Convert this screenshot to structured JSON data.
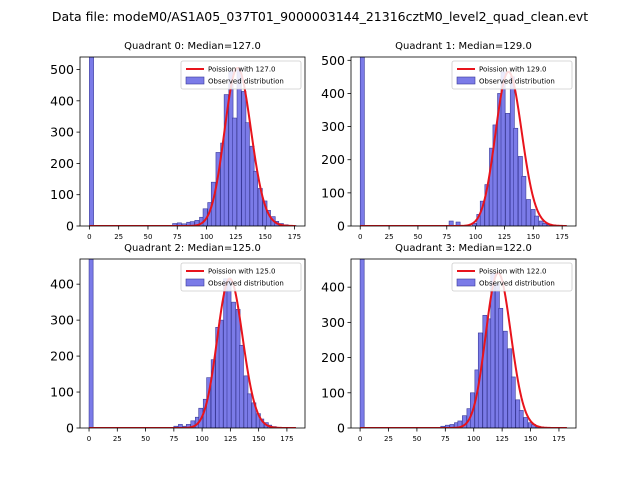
{
  "figure": {
    "suptitle": "Data file: modeM0/AS1A05_037T01_9000003144_21316cztM0_level2_quad_clean.evt"
  },
  "colors": {
    "bar_fill": "#7b7be8",
    "bar_edge": "#3a3a9a",
    "poisson_line": "#e8141c"
  },
  "legend": {
    "poisson_prefix": "Poission with ",
    "observed_label": "Observed distribution",
    "placement": "upper right"
  },
  "chart_data": [
    {
      "type": "bar",
      "title": "Quadrant 0: Median=127.0",
      "median": 127.0,
      "poisson_label": "Poission with 127.0",
      "xlim": [
        -8,
        184
      ],
      "ylim": [
        0,
        540
      ],
      "xticks": [
        0,
        25,
        50,
        75,
        100,
        125,
        150,
        175
      ],
      "yticks": [
        0,
        100,
        200,
        300,
        400,
        500
      ],
      "bin_width": 3.6,
      "bins_x": [
        0,
        68,
        71,
        75,
        79,
        83,
        86,
        90,
        94,
        97,
        101,
        104,
        108,
        112,
        115,
        119,
        122,
        126,
        130,
        133,
        137,
        140,
        144,
        148,
        151,
        155,
        158,
        162,
        166,
        169,
        173
      ],
      "values": [
        540,
        2,
        8,
        10,
        7,
        12,
        14,
        18,
        28,
        55,
        75,
        140,
        235,
        265,
        420,
        495,
        345,
        505,
        430,
        330,
        255,
        175,
        120,
        80,
        50,
        30,
        15,
        8,
        4,
        2,
        1
      ]
    },
    {
      "type": "bar",
      "title": "Quadrant 1: Median=129.0",
      "median": 129.0,
      "poisson_label": "Poission with 129.0",
      "xlim": [
        -8,
        187
      ],
      "ylim": [
        0,
        510
      ],
      "xticks": [
        0,
        25,
        50,
        75,
        100,
        125,
        150,
        175
      ],
      "yticks": [
        0,
        100,
        200,
        300,
        400,
        500
      ],
      "bin_width": 3.6,
      "bins_x": [
        0,
        77,
        83,
        97,
        101,
        104,
        108,
        112,
        115,
        119,
        122,
        126,
        130,
        133,
        137,
        140,
        144,
        148,
        151,
        155,
        158,
        162,
        166,
        169
      ],
      "values": [
        510,
        15,
        12,
        8,
        35,
        75,
        125,
        235,
        305,
        400,
        465,
        340,
        450,
        295,
        210,
        150,
        80,
        50,
        30,
        15,
        8,
        4,
        2,
        1
      ]
    },
    {
      "type": "bar",
      "title": "Quadrant 2: Median=125.0",
      "median": 125.0,
      "poisson_label": "Poission with 125.0",
      "xlim": [
        -8,
        191
      ],
      "ylim": [
        0,
        470
      ],
      "xticks": [
        0,
        25,
        50,
        75,
        100,
        125,
        150,
        175
      ],
      "yticks": [
        0,
        100,
        200,
        300,
        400
      ],
      "bin_width": 3.6,
      "bins_x": [
        0,
        75,
        79,
        83,
        86,
        90,
        94,
        97,
        101,
        104,
        108,
        112,
        115,
        119,
        122,
        126,
        130,
        133,
        137,
        140,
        144,
        148,
        151,
        155,
        158,
        162,
        166,
        169
      ],
      "values": [
        470,
        5,
        10,
        5,
        10,
        20,
        30,
        55,
        80,
        140,
        190,
        280,
        300,
        415,
        410,
        350,
        330,
        230,
        145,
        95,
        70,
        40,
        25,
        15,
        8,
        4,
        2,
        1
      ]
    },
    {
      "type": "bar",
      "title": "Quadrant 3: Median=122.0",
      "median": 122.0,
      "poisson_label": "Poission with 122.0",
      "xlim": [
        -8,
        190
      ],
      "ylim": [
        0,
        480
      ],
      "xticks": [
        0,
        25,
        50,
        75,
        100,
        125,
        150,
        175
      ],
      "yticks": [
        0,
        100,
        200,
        300,
        400
      ],
      "bin_width": 3.6,
      "bins_x": [
        0,
        71,
        75,
        79,
        83,
        86,
        90,
        94,
        97,
        101,
        104,
        108,
        112,
        115,
        119,
        122,
        126,
        130,
        133,
        137,
        140,
        144,
        148,
        151,
        155,
        158,
        162,
        166
      ],
      "values": [
        480,
        5,
        8,
        10,
        15,
        20,
        35,
        55,
        100,
        165,
        270,
        320,
        310,
        440,
        410,
        340,
        275,
        225,
        145,
        80,
        50,
        30,
        15,
        10,
        5,
        3,
        2,
        1
      ]
    }
  ]
}
